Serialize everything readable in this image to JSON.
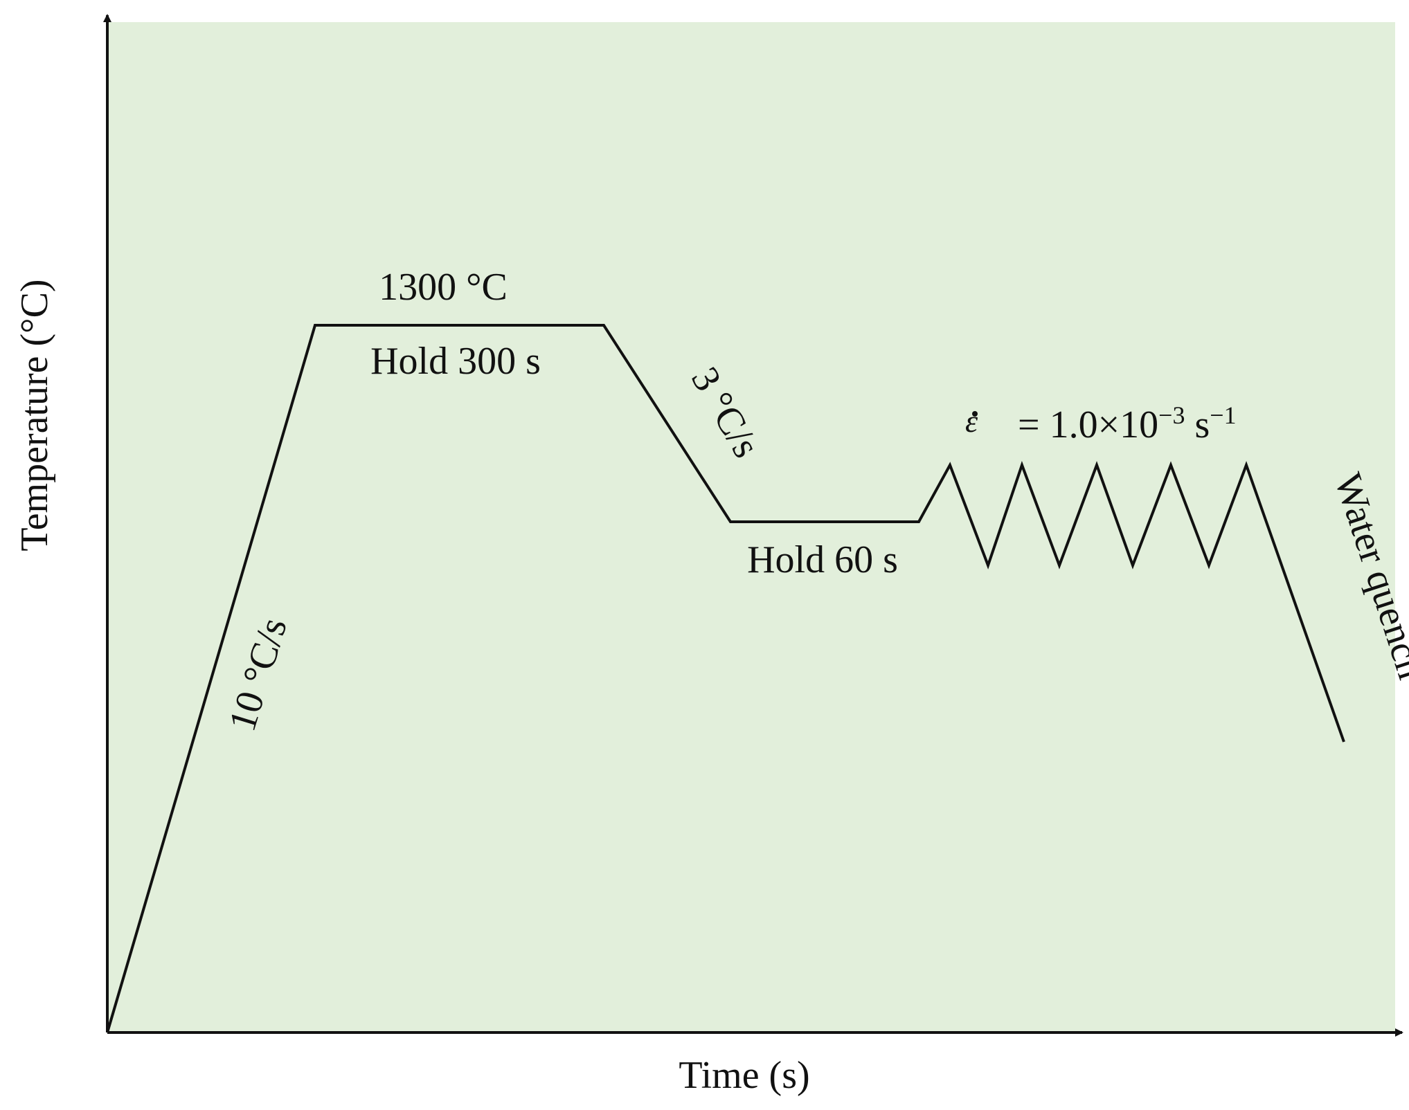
{
  "colors": {
    "plot_background": "#e2efdb",
    "line": "#111111",
    "axis": "#111111"
  },
  "axes": {
    "x_label": "Time (s)",
    "y_label": "Temperature (°C)"
  },
  "annotations": {
    "heating_rate": "10 °C/s",
    "peak_temperature": "1300 °C",
    "first_hold": "Hold  300 s",
    "cooling_rate": "3 °C/s",
    "second_hold": "Hold 60 s",
    "strain_rate_symbol": "ε",
    "strain_rate_value": "= 1.0×10",
    "strain_rate_exp1": "−3",
    "strain_rate_unit": " s",
    "strain_rate_exp2": "−1",
    "quench": "Water quench"
  },
  "schedule": {
    "steps": [
      "heat",
      "hold",
      "cool",
      "hold",
      "cyclic deformation",
      "water quench"
    ],
    "cycle_count": 5
  }
}
